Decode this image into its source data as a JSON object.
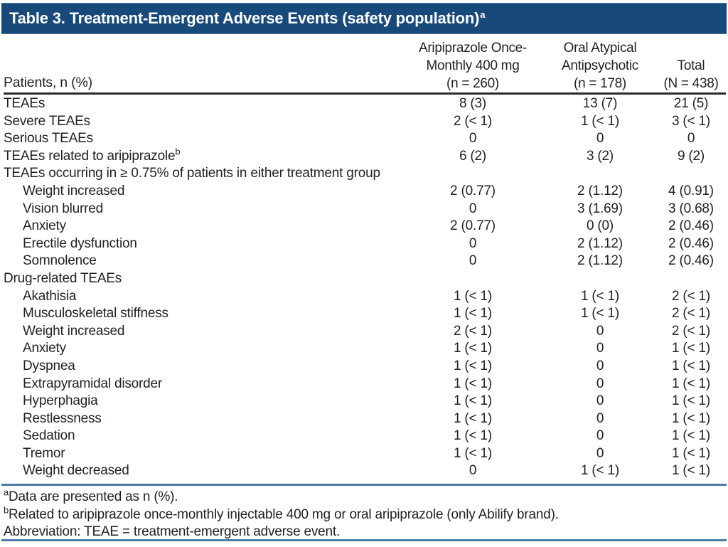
{
  "header": {
    "title": "Table 3. Treatment-Emergent Adverse Events (safety population)",
    "title_sup": "a"
  },
  "table": {
    "row_header": "Patients, n (%)",
    "columns": [
      {
        "lines": [
          "Aripiprazole Once-",
          "Monthly 400 mg",
          "(n = 260)"
        ]
      },
      {
        "lines": [
          "Oral Atypical",
          "Antipsychotic",
          "(n = 178)"
        ]
      },
      {
        "lines": [
          "Total",
          "(N = 438)"
        ]
      }
    ],
    "rows": [
      {
        "label": "TEAEs",
        "indent": false,
        "values": [
          "8 (3)",
          "13 (7)",
          "21 (5)"
        ]
      },
      {
        "label": "Severe TEAEs",
        "indent": false,
        "values": [
          "2 (< 1)",
          "1 (< 1)",
          "3 (< 1)"
        ]
      },
      {
        "label": "Serious TEAEs",
        "indent": false,
        "values": [
          "0",
          "0",
          "0"
        ]
      },
      {
        "label": "TEAEs related to aripiprazole",
        "sup": "b",
        "indent": false,
        "values": [
          "6 (2)",
          "3 (2)",
          "9 (2)"
        ]
      },
      {
        "label": "TEAEs occurring in ≥ 0.75% of patients in either treatment group",
        "indent": false,
        "section": true,
        "values": [
          "",
          "",
          ""
        ]
      },
      {
        "label": "Weight increased",
        "indent": true,
        "values": [
          "2 (0.77)",
          "2 (1.12)",
          "4 (0.91)"
        ]
      },
      {
        "label": "Vision blurred",
        "indent": true,
        "values": [
          "0",
          "3 (1.69)",
          "3 (0.68)"
        ]
      },
      {
        "label": "Anxiety",
        "indent": true,
        "values": [
          "2 (0.77)",
          "0 (0)",
          "2 (0.46)"
        ]
      },
      {
        "label": "Erectile dysfunction",
        "indent": true,
        "values": [
          "0",
          "2 (1.12)",
          "2 (0.46)"
        ]
      },
      {
        "label": "Somnolence",
        "indent": true,
        "values": [
          "0",
          "2 (1.12)",
          "2 (0.46)"
        ]
      },
      {
        "label": "Drug-related TEAEs",
        "indent": false,
        "section": true,
        "values": [
          "",
          "",
          ""
        ]
      },
      {
        "label": "Akathisia",
        "indent": true,
        "values": [
          "1 (< 1)",
          "1 (< 1)",
          "2 (< 1)"
        ]
      },
      {
        "label": "Musculoskeletal stiffness",
        "indent": true,
        "values": [
          "1 (< 1)",
          "1 (< 1)",
          "2 (< 1)"
        ]
      },
      {
        "label": "Weight increased",
        "indent": true,
        "values": [
          "2 (< 1)",
          "0",
          "2 (< 1)"
        ]
      },
      {
        "label": "Anxiety",
        "indent": true,
        "values": [
          "1 (< 1)",
          "0",
          "1 (< 1)"
        ]
      },
      {
        "label": "Dyspnea",
        "indent": true,
        "values": [
          "1 (< 1)",
          "0",
          "1 (< 1)"
        ]
      },
      {
        "label": "Extrapyramidal disorder",
        "indent": true,
        "values": [
          "1 (< 1)",
          "0",
          "1 (< 1)"
        ]
      },
      {
        "label": "Hyperphagia",
        "indent": true,
        "values": [
          "1 (< 1)",
          "0",
          "1 (< 1)"
        ]
      },
      {
        "label": "Restlessness",
        "indent": true,
        "values": [
          "1 (< 1)",
          "0",
          "1 (< 1)"
        ]
      },
      {
        "label": "Sedation",
        "indent": true,
        "values": [
          "1 (< 1)",
          "0",
          "1 (< 1)"
        ]
      },
      {
        "label": "Tremor",
        "indent": true,
        "values": [
          "1 (< 1)",
          "0",
          "1 (< 1)"
        ]
      },
      {
        "label": "Weight decreased",
        "indent": true,
        "values": [
          "0",
          "1 (< 1)",
          "1 (< 1)"
        ]
      }
    ]
  },
  "footnotes": [
    {
      "sup": "a",
      "text": "Data are presented as n (%)."
    },
    {
      "sup": "b",
      "text": "Related to aripiprazole once-monthly injectable 400 mg or oral aripiprazole (only Abilify brand)."
    },
    {
      "sup": "",
      "text": "Abbreviation: TEAE = treatment-emergent adverse event."
    }
  ],
  "colors": {
    "title_bar_bg": "#17497b",
    "title_text": "#ffffff",
    "body_text": "#231f20",
    "rule_blue": "#4a7da8",
    "rule_dark": "#2b2a2c"
  }
}
